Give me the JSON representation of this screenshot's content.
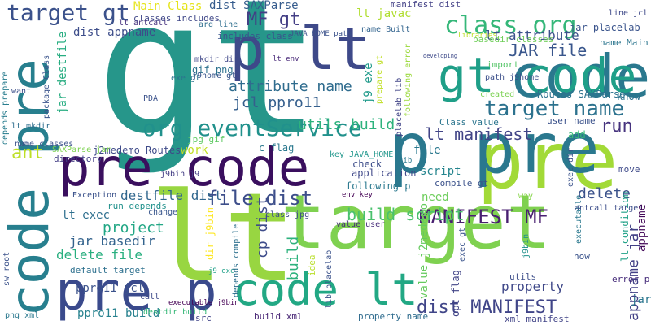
{
  "words": [
    {
      "text": "gt",
      "color": "#26968a"
    },
    {
      "text": "lt",
      "color": "#98d641"
    },
    {
      "text": "target",
      "color": "#7fd150"
    },
    {
      "text": "pre",
      "color": "#a2da37"
    },
    {
      "text": "pre code",
      "color": "#3a0f5e"
    },
    {
      "text": "code pre",
      "color": "#277f8e"
    },
    {
      "text": "p pre",
      "color": "#2a788e"
    },
    {
      "text": "code lt",
      "color": "#22a884"
    },
    {
      "text": "code",
      "color": "#2a788e"
    },
    {
      "text": "gt code",
      "color": "#1f9f88"
    },
    {
      "text": "pre p",
      "color": "#3a4a8c"
    },
    {
      "text": "p lt",
      "color": "#3e4989"
    },
    {
      "text": "class org",
      "color": "#35b779"
    },
    {
      "text": "org eventService",
      "color": "#21918c"
    },
    {
      "text": "target gt",
      "color": "#3b518b"
    },
    {
      "text": "MF gt",
      "color": "#433e85"
    },
    {
      "text": "target name",
      "color": "#2c728e"
    },
    {
      "text": "MANIFEST MF",
      "color": "#481f70"
    },
    {
      "text": "JAR file",
      "color": "#39568c"
    },
    {
      "text": "dist MANIFEST",
      "color": "#404588"
    },
    {
      "text": "file dist",
      "color": "#3d4e8a"
    },
    {
      "text": "lt manifest",
      "color": "#414487"
    },
    {
      "text": "attribute name",
      "color": "#2f6c8e"
    },
    {
      "text": "build script",
      "color": "#4ac16d"
    },
    {
      "text": "jcl ppro11",
      "color": "#355f8d"
    },
    {
      "text": "lt attribute",
      "color": "#3b528b"
    },
    {
      "text": "destfile dist",
      "color": "#31678e"
    },
    {
      "text": "utils build",
      "color": "#2db27d"
    },
    {
      "text": "project",
      "color": "#22a785"
    },
    {
      "text": "property",
      "color": "#3f4889"
    },
    {
      "text": "run",
      "color": "#46337e"
    },
    {
      "text": "ant",
      "color": "#bddf26"
    },
    {
      "text": "delete",
      "color": "#3b528b"
    },
    {
      "text": "lt exec",
      "color": "#2e6f8e"
    },
    {
      "text": "jar basedir",
      "color": "#33638d"
    },
    {
      "text": "delete file",
      "color": "#29af7f"
    },
    {
      "text": "appname jar",
      "color": "#424086"
    },
    {
      "text": "ppro11 jcl",
      "color": "#3b528b"
    },
    {
      "text": "Main Class",
      "color": "#e5e419"
    },
    {
      "text": "dist appname",
      "color": "#3d4d8a"
    },
    {
      "text": "dist SAXParse",
      "color": "#365c8d"
    },
    {
      "text": "lt javac",
      "color": "#b0dd2f"
    },
    {
      "text": "manifest dist",
      "color": "#424086"
    },
    {
      "text": "classes includes",
      "color": "#3f4788"
    },
    {
      "text": "work",
      "color": "#c2df23"
    },
    {
      "text": "file",
      "color": "#2a788e"
    },
    {
      "text": "script",
      "color": "#25858e"
    },
    {
      "text": "need",
      "color": "#6ccd5a"
    },
    {
      "text": "j2medemo Routes",
      "color": "#3e4a89"
    },
    {
      "text": "Routes SAXParse",
      "color": "#2c728e"
    },
    {
      "text": "jar destfile",
      "color": "#27ad81"
    },
    {
      "text": "j9 exe",
      "color": "#1f9a8a"
    },
    {
      "text": "build",
      "color": "#2db27d"
    },
    {
      "text": "cp dist",
      "color": "#3e4c8a"
    },
    {
      "text": "lt condition",
      "color": "#1fa187"
    },
    {
      "text": "jar placelab",
      "color": "#3a548c"
    },
    {
      "text": "appname",
      "color": "#450b5a"
    },
    {
      "text": "Class value",
      "color": "#2b758e"
    },
    {
      "text": "name Main",
      "color": "#2b758e"
    },
    {
      "text": "basedir classes",
      "color": "#6ece58"
    },
    {
      "text": "gif png",
      "color": "#2c718e"
    },
    {
      "text": "includes class",
      "color": "#39558c"
    },
    {
      "text": "arg line",
      "color": "#2e6e8e"
    },
    {
      "text": "name Built",
      "color": "#32648e"
    },
    {
      "text": "JAVA_HOME path",
      "color": "#3b528b"
    },
    {
      "text": "c flag",
      "color": "#2a788e"
    },
    {
      "text": "j9bin j9",
      "color": "#433d84"
    },
    {
      "text": "key JAVA_HOME",
      "color": "#1f968b"
    },
    {
      "text": "Exception",
      "color": "#3b528b"
    },
    {
      "text": "run depends",
      "color": "#21918c"
    },
    {
      "text": "application",
      "color": "#3f4889"
    },
    {
      "text": "env key",
      "color": "#440154"
    },
    {
      "text": "check",
      "color": "#3d4d8a"
    },
    {
      "text": "following p",
      "color": "#2a788e"
    },
    {
      "text": "compile gt",
      "color": "#3b528b"
    },
    {
      "text": "user name",
      "color": "#3b528b"
    },
    {
      "text": "add",
      "color": "#38b977"
    },
    {
      "text": "know",
      "color": "#2c728e"
    },
    {
      "text": "created",
      "color": "#7ad151"
    },
    {
      "text": "import",
      "color": "#55c568"
    },
    {
      "text": "idea",
      "color": "#b8de29"
    },
    {
      "text": "value j2medemo",
      "color": "#65cb5e"
    },
    {
      "text": "opt flag",
      "color": "#414487"
    },
    {
      "text": "error p",
      "color": "#472d7b"
    },
    {
      "text": "now",
      "color": "#3a538b"
    },
    {
      "text": "utils",
      "color": "#3d4e8a"
    },
    {
      "text": "xml manifest",
      "color": "#404387"
    },
    {
      "text": "value user",
      "color": "#472c7a"
    },
    {
      "text": "build xml",
      "color": "#482575"
    },
    {
      "text": "property name",
      "color": "#2f6c8e"
    },
    {
      "text": "default target",
      "color": "#2d708e"
    },
    {
      "text": "directory",
      "color": "#433e85"
    },
    {
      "text": "name classes",
      "color": "#3b528b"
    },
    {
      "text": "jar",
      "color": "#2a768e"
    },
    {
      "text": "way",
      "color": "#86d549"
    },
    {
      "text": "move",
      "color": "#3e4a89"
    },
    {
      "text": "change",
      "color": "#39568c"
    },
    {
      "text": "package Class",
      "color": "#3a548c"
    },
    {
      "text": "depends prepare",
      "color": "#287d8e"
    },
    {
      "text": "want",
      "color": "#3c4f8a"
    },
    {
      "text": "lt mkdir",
      "color": "#2e6e8e"
    },
    {
      "text": "SAXParse jar",
      "color": "#7cd250"
    },
    {
      "text": "sw root",
      "color": "#3b528b"
    },
    {
      "text": "png xml",
      "color": "#2a788e"
    },
    {
      "text": "ppro11 build",
      "color": "#26818e"
    },
    {
      "text": "destdir build",
      "color": "#37b878"
    },
    {
      "text": "call",
      "color": "#3e4a89"
    },
    {
      "text": "src",
      "color": "#404387"
    },
    {
      "text": "j9 exe",
      "color": "#1fa088"
    },
    {
      "text": "PDA",
      "color": "#3b528b"
    },
    {
      "text": "exe gt",
      "color": "#2b758e"
    },
    {
      "text": "j9home gt",
      "color": "#39568c"
    },
    {
      "text": "mkdir dir",
      "color": "#3f4788"
    },
    {
      "text": "lt env",
      "color": "#482878"
    },
    {
      "text": "lt antcall",
      "color": "#46317e"
    },
    {
      "text": "jpg gif",
      "color": "#5ec962"
    },
    {
      "text": "class jpg",
      "color": "#3e4c8a"
    },
    {
      "text": "depends compile",
      "color": "#2d708e"
    },
    {
      "text": "dir j9bin",
      "color": "#fde725"
    },
    {
      "text": "lib placelab",
      "color": "#3b528b"
    },
    {
      "text": "placelab lib",
      "color": "#414487"
    },
    {
      "text": "following error",
      "color": "#9bd93c"
    },
    {
      "text": "executable j9bin",
      "color": "#440154"
    },
    {
      "text": "exec dir",
      "color": "#3b528b"
    },
    {
      "text": "executable",
      "color": "#2a788e"
    },
    {
      "text": "antcall target",
      "color": "#3d4e8a"
    },
    {
      "text": "j9bin",
      "color": "#21918c"
    },
    {
      "text": "exec gt",
      "color": "#3a548c"
    },
    {
      "text": "prepare gt",
      "color": "#c0df25"
    },
    {
      "text": "path j9home",
      "color": "#3c4f8a"
    },
    {
      "text": "line jcl",
      "color": "#3e4989"
    },
    {
      "text": "libraries",
      "color": "#bddf26"
    },
    {
      "text": "developing",
      "color": "#3e4a89"
    },
    {
      "text": "lib",
      "color": "#2a788e"
    }
  ]
}
